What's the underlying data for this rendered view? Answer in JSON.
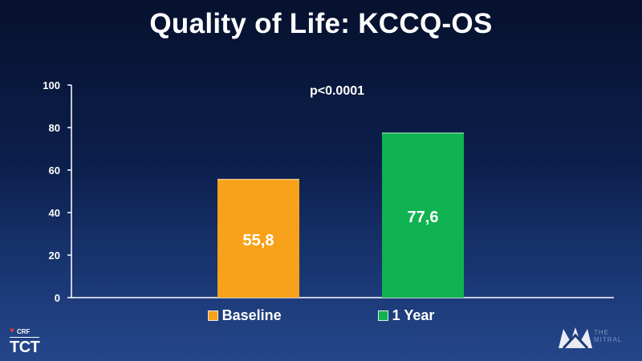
{
  "slide": {
    "title": "Quality of Life: KCCQ-OS"
  },
  "chart_data": {
    "type": "bar",
    "categories": [
      "Baseline",
      "1 Year"
    ],
    "values": [
      55.8,
      77.6
    ],
    "value_labels": [
      "55,8",
      "77,6"
    ],
    "colors": [
      "#f7a21a",
      "#10b251"
    ],
    "ylim": [
      0,
      100
    ],
    "yticks": [
      0,
      20,
      40,
      60,
      80,
      100
    ],
    "ytick_labels": [
      "0",
      "20",
      "40",
      "60",
      "80",
      "100"
    ],
    "annotation": "p<0.0001",
    "legend": {
      "placement": "bottom",
      "entries": [
        {
          "label": "Baseline",
          "color": "#f7a21a"
        },
        {
          "label": "1 Year",
          "color": "#10b251"
        }
      ]
    },
    "grid": false
  },
  "logos": {
    "left_brand": "CRF",
    "left_name": "TCT",
    "right_lines": [
      "THE",
      "MITRAL"
    ]
  }
}
